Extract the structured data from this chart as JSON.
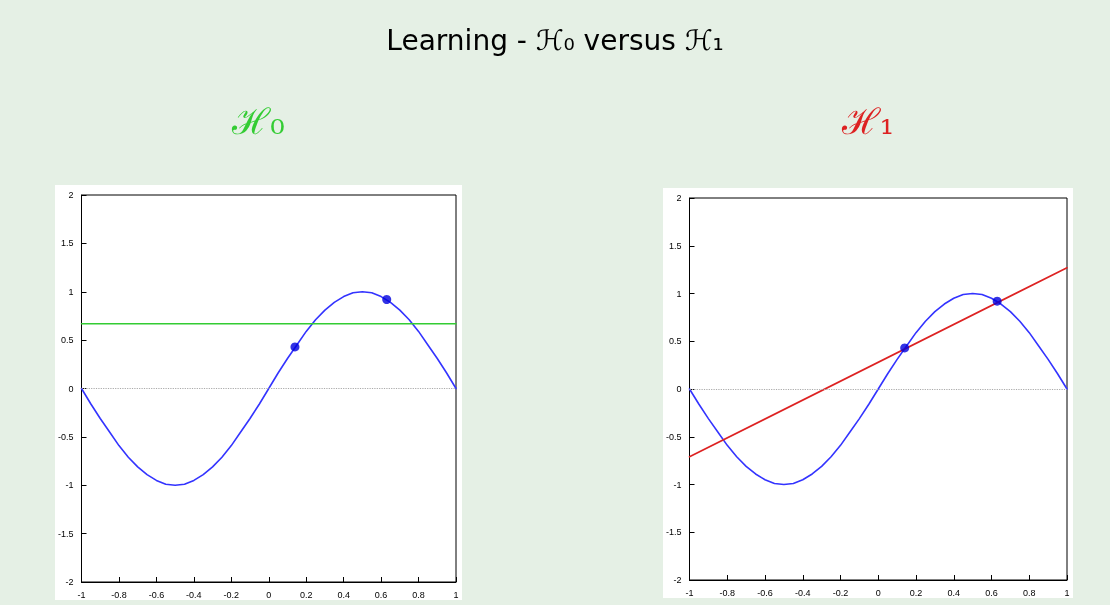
{
  "chart_data": [
    {
      "type": "line",
      "title": "ℋ₀",
      "annotations": [
        "Learning - ℋ₀ versus ℋ₁"
      ],
      "xlim": [
        -1,
        1
      ],
      "xticks": [
        -1,
        -0.8,
        -0.6,
        -0.4,
        -0.2,
        0,
        0.2,
        0.4,
        0.6,
        0.8,
        1
      ],
      "ylim": [
        -2,
        2
      ],
      "yticks": [
        -2,
        -1.5,
        -1,
        -0.5,
        0,
        0.5,
        1,
        1.5,
        2
      ],
      "grid": false,
      "ref_lines": [
        {
          "axis": "y",
          "value": 0,
          "color": "#aaaaaa",
          "line_style": "dotted"
        }
      ],
      "series": [
        {
          "color": "#3333ff",
          "marker": "none",
          "x": [
            -1,
            -0.95,
            -0.9,
            -0.85,
            -0.8,
            -0.75,
            -0.7,
            -0.65,
            -0.6,
            -0.55,
            -0.5,
            -0.45,
            -0.4,
            -0.35,
            -0.3,
            -0.25,
            -0.2,
            -0.15,
            -0.1,
            -0.05,
            0,
            0.05,
            0.1,
            0.15,
            0.2,
            0.25,
            0.3,
            0.35,
            0.4,
            0.45,
            0.5,
            0.55,
            0.6,
            0.65,
            0.7,
            0.75,
            0.8,
            0.85,
            0.9,
            0.95,
            1
          ],
          "values": [
            0,
            -0.16,
            -0.31,
            -0.45,
            -0.59,
            -0.71,
            -0.81,
            -0.89,
            -0.95,
            -0.99,
            -1,
            -0.99,
            -0.95,
            -0.89,
            -0.81,
            -0.71,
            -0.59,
            -0.45,
            -0.31,
            -0.16,
            0,
            0.16,
            0.31,
            0.45,
            0.59,
            0.71,
            0.81,
            0.89,
            0.95,
            0.99,
            1,
            0.99,
            0.95,
            0.89,
            0.81,
            0.71,
            0.59,
            0.45,
            0.31,
            0.16,
            0
          ]
        },
        {
          "type": "scatter",
          "color": "#0000dd",
          "marker": "circle",
          "x": [
            0.14,
            0.63
          ],
          "values": [
            0.43,
            0.92
          ]
        },
        {
          "color": "#33cc33",
          "marker": "none",
          "x": [
            -1,
            1
          ],
          "values": [
            0.67,
            0.67
          ]
        }
      ]
    },
    {
      "type": "line",
      "title": "ℋ₁",
      "xlim": [
        -1,
        1
      ],
      "xticks": [
        -1,
        -0.8,
        -0.6,
        -0.4,
        -0.2,
        0,
        0.2,
        0.4,
        0.6,
        0.8,
        1
      ],
      "ylim": [
        -2,
        2
      ],
      "yticks": [
        -2,
        -1.5,
        -1,
        -0.5,
        0,
        0.5,
        1,
        1.5,
        2
      ],
      "grid": false,
      "ref_lines": [
        {
          "axis": "y",
          "value": 0,
          "color": "#aaaaaa",
          "line_style": "dotted"
        }
      ],
      "series": [
        {
          "color": "#3333ff",
          "marker": "none",
          "x": [
            -1,
            -0.95,
            -0.9,
            -0.85,
            -0.8,
            -0.75,
            -0.7,
            -0.65,
            -0.6,
            -0.55,
            -0.5,
            -0.45,
            -0.4,
            -0.35,
            -0.3,
            -0.25,
            -0.2,
            -0.15,
            -0.1,
            -0.05,
            0,
            0.05,
            0.1,
            0.15,
            0.2,
            0.25,
            0.3,
            0.35,
            0.4,
            0.45,
            0.5,
            0.55,
            0.6,
            0.65,
            0.7,
            0.75,
            0.8,
            0.85,
            0.9,
            0.95,
            1
          ],
          "values": [
            0,
            -0.16,
            -0.31,
            -0.45,
            -0.59,
            -0.71,
            -0.81,
            -0.89,
            -0.95,
            -0.99,
            -1,
            -0.99,
            -0.95,
            -0.89,
            -0.81,
            -0.71,
            -0.59,
            -0.45,
            -0.31,
            -0.16,
            0,
            0.16,
            0.31,
            0.45,
            0.59,
            0.71,
            0.81,
            0.89,
            0.95,
            0.99,
            1,
            0.99,
            0.95,
            0.89,
            0.81,
            0.71,
            0.59,
            0.45,
            0.31,
            0.16,
            0
          ]
        },
        {
          "color": "#dd2222",
          "marker": "none",
          "x": [
            -1,
            1
          ],
          "values": [
            -0.71,
            1.27
          ]
        },
        {
          "type": "scatter",
          "color": "#0000dd",
          "marker": "circle",
          "x": [
            0.14,
            0.63
          ],
          "values": [
            0.43,
            0.92
          ]
        }
      ]
    }
  ]
}
